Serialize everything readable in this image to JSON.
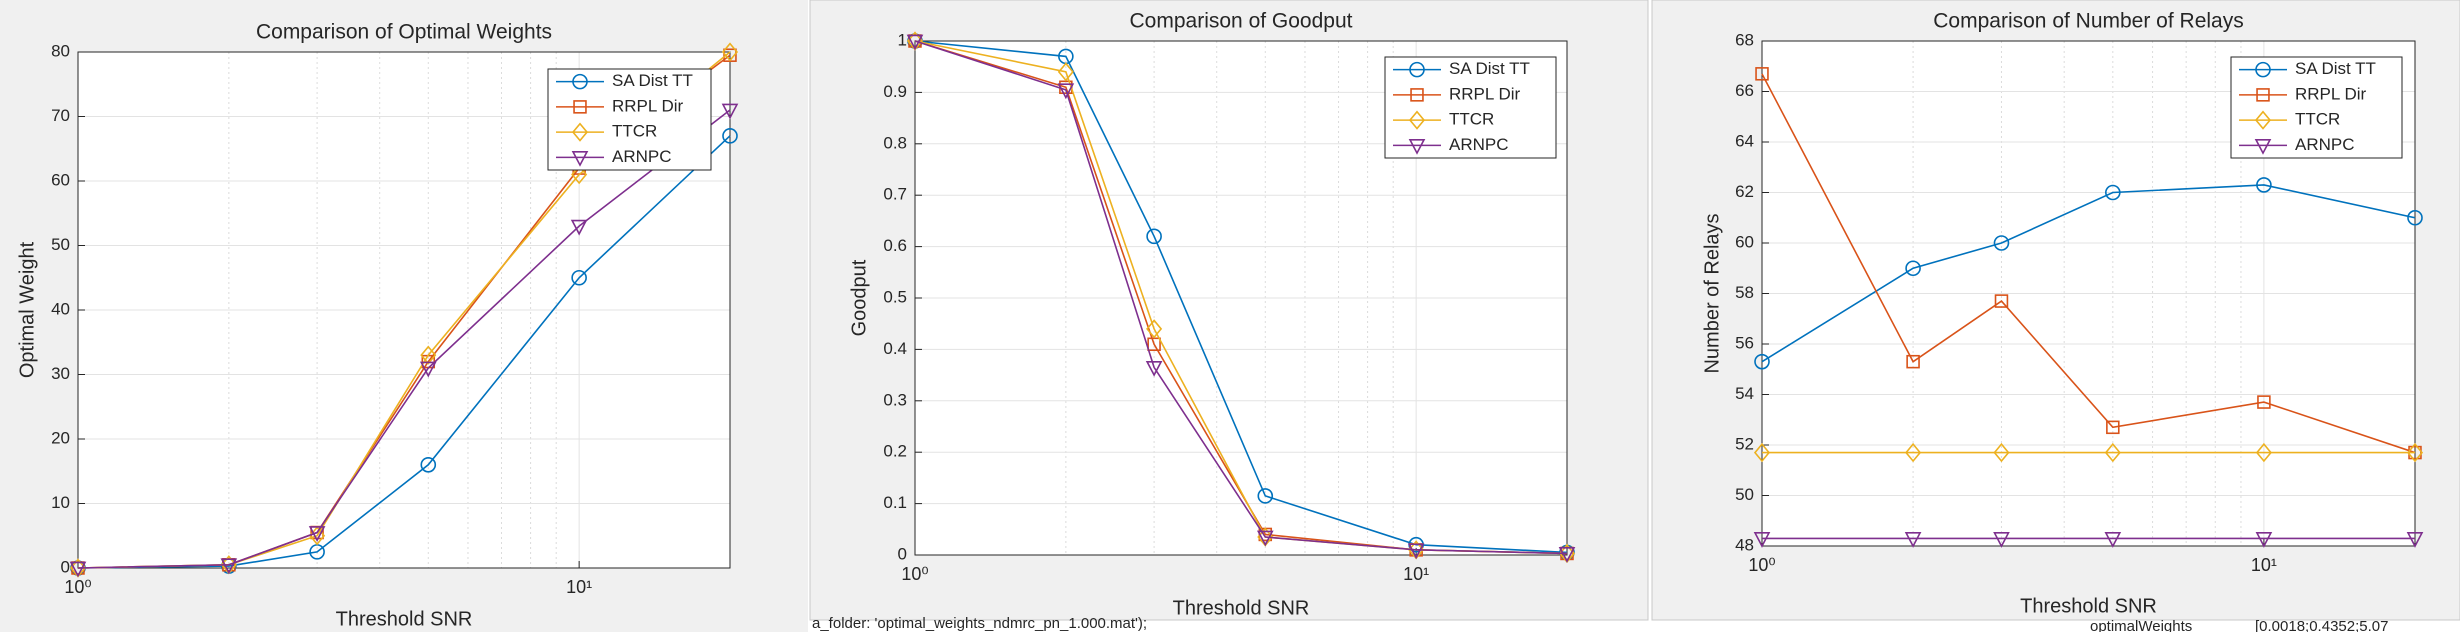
{
  "chart_data": [
    {
      "type": "line",
      "title": "Comparison of Optimal Weights",
      "xlabel": "Threshold SNR",
      "ylabel": "Optimal Weight",
      "x": [
        1,
        2,
        3,
        5,
        10,
        20
      ],
      "xscale": "log",
      "xlim": [
        1,
        20
      ],
      "xticks": [
        {
          "value": 1,
          "label": "10⁰"
        },
        {
          "value": 10,
          "label": "10¹"
        }
      ],
      "ylim": [
        0,
        80
      ],
      "yticks": [
        0,
        10,
        20,
        30,
        40,
        50,
        60,
        70,
        80
      ],
      "grid": true,
      "minor_grid": true,
      "legend": "upper right",
      "series": [
        {
          "name": "SA Dist TT",
          "color": "#0072BD",
          "marker": "o",
          "values": [
            0,
            0.3,
            2.5,
            16,
            45,
            67
          ]
        },
        {
          "name": "RRPL Dir",
          "color": "#D95319",
          "marker": "s",
          "values": [
            0,
            0.5,
            5.5,
            32,
            62,
            79.5
          ]
        },
        {
          "name": "TTCR",
          "color": "#EDB120",
          "marker": "d",
          "values": [
            0,
            0.5,
            5,
            33,
            61,
            80
          ]
        },
        {
          "name": "ARNPC",
          "color": "#7E2F8E",
          "marker": "v",
          "values": [
            0,
            0.5,
            5.5,
            31,
            53,
            71
          ]
        }
      ]
    },
    {
      "type": "line",
      "title": "Comparison of Goodput",
      "xlabel": "Threshold SNR",
      "ylabel": "Goodput",
      "x": [
        1,
        2,
        3,
        5,
        10,
        20
      ],
      "xscale": "log",
      "xlim": [
        1,
        20
      ],
      "xticks": [
        {
          "value": 1,
          "label": "10⁰"
        },
        {
          "value": 10,
          "label": "10¹"
        }
      ],
      "ylim": [
        0,
        1
      ],
      "yticks": [
        0,
        0.1,
        0.2,
        0.3,
        0.4,
        0.5,
        0.6,
        0.7,
        0.8,
        0.9,
        1
      ],
      "grid": true,
      "minor_grid": true,
      "legend": "upper right",
      "series": [
        {
          "name": "SA Dist TT",
          "color": "#0072BD",
          "marker": "o",
          "values": [
            1,
            0.97,
            0.62,
            0.115,
            0.02,
            0.005
          ]
        },
        {
          "name": "RRPL Dir",
          "color": "#D95319",
          "marker": "s",
          "values": [
            1,
            0.91,
            0.41,
            0.04,
            0.01,
            0.003
          ]
        },
        {
          "name": "TTCR",
          "color": "#EDB120",
          "marker": "d",
          "values": [
            1,
            0.94,
            0.44,
            0.035,
            0.01,
            0.003
          ]
        },
        {
          "name": "ARNPC",
          "color": "#7E2F8E",
          "marker": "v",
          "values": [
            1,
            0.905,
            0.365,
            0.035,
            0.01,
            0.003
          ]
        }
      ]
    },
    {
      "type": "line",
      "title": "Comparison of Number of Relays",
      "xlabel": "Threshold SNR",
      "ylabel": "Number of Relays",
      "x": [
        1,
        2,
        3,
        5,
        10,
        20
      ],
      "xscale": "log",
      "xlim": [
        1,
        20
      ],
      "xticks": [
        {
          "value": 1,
          "label": "10⁰"
        },
        {
          "value": 10,
          "label": "10¹"
        }
      ],
      "ylim": [
        48,
        68
      ],
      "yticks": [
        48,
        50,
        52,
        54,
        56,
        58,
        60,
        62,
        64,
        66,
        68
      ],
      "grid": true,
      "minor_grid": true,
      "legend": "upper right",
      "series": [
        {
          "name": "SA Dist TT",
          "color": "#0072BD",
          "marker": "o",
          "values": [
            55.3,
            59,
            60,
            62,
            62.3,
            61
          ]
        },
        {
          "name": "RRPL Dir",
          "color": "#D95319",
          "marker": "s",
          "values": [
            66.7,
            55.3,
            57.7,
            52.7,
            53.7,
            51.7
          ]
        },
        {
          "name": "TTCR",
          "color": "#EDB120",
          "marker": "d",
          "values": [
            51.7,
            51.7,
            51.7,
            51.7,
            51.7,
            51.7
          ]
        },
        {
          "name": "ARNPC",
          "color": "#7E2F8E",
          "marker": "v",
          "values": [
            48.3,
            48.3,
            48.3,
            48.3,
            48.3,
            48.3
          ]
        }
      ]
    }
  ],
  "background_text": [
    "a_folder:  'optimal_weights_ndmrc_pn_1.000.mat');",
    "optimalWeights",
    "[0.0018;0.4352;5.07"
  ]
}
